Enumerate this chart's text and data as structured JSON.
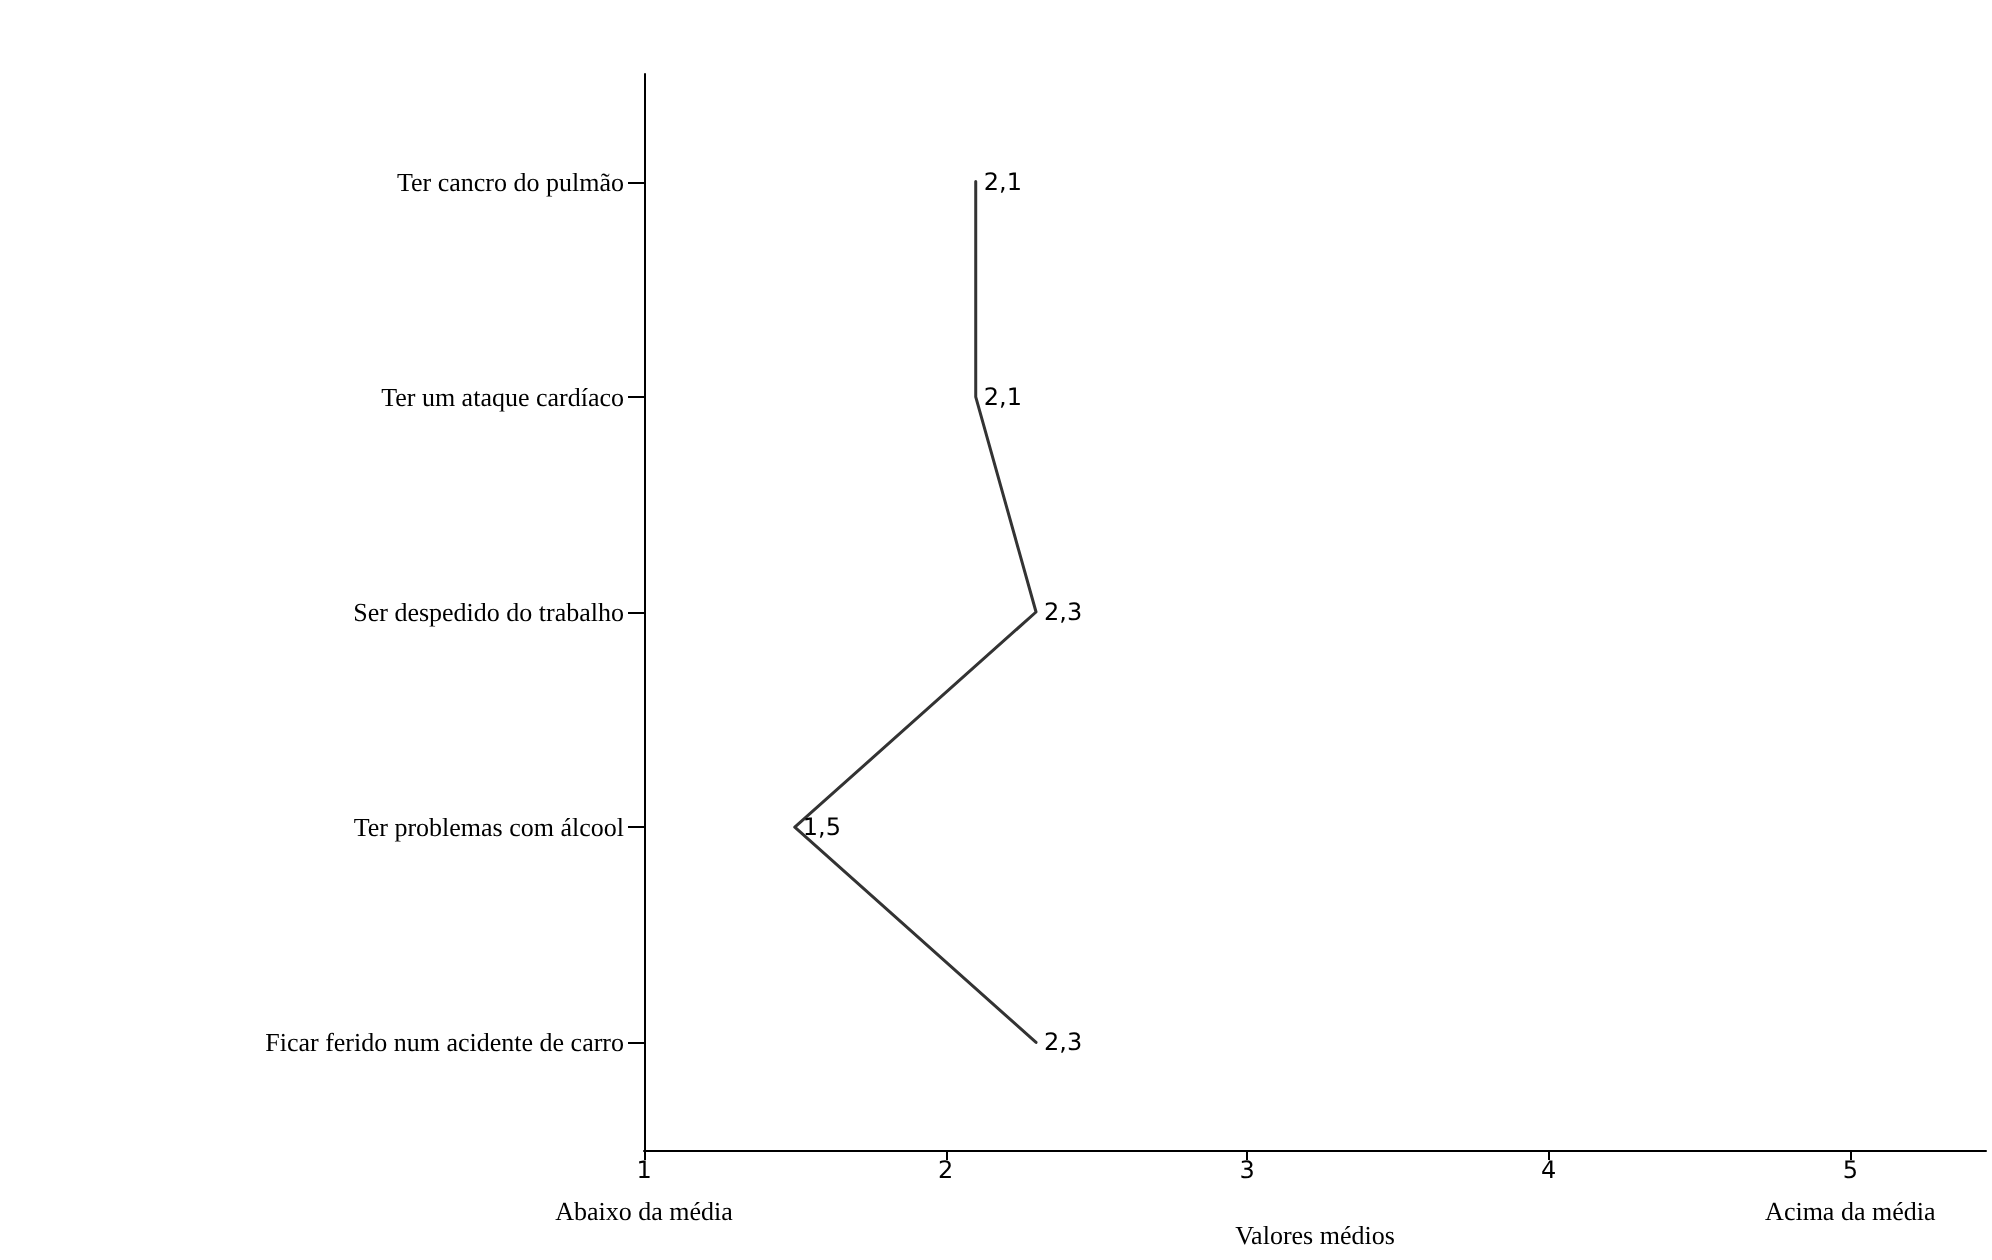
{
  "chart_data": {
    "type": "line",
    "orientation": "horizontal",
    "categories": [
      "Ter cancro do pulmão",
      "Ter um ataque cardíaco",
      "Ser despedido do trabalho",
      "Ter problemas com álcool",
      "Ficar ferido num acidente de carro"
    ],
    "values": [
      2.1,
      2.1,
      2.3,
      1.5,
      2.3
    ],
    "value_labels": [
      "2,1",
      "2,1",
      "2,3",
      "1,5",
      "2,3"
    ],
    "color": "#333333",
    "xlim": [
      1,
      5.45
    ],
    "xticks": [
      1,
      2,
      3,
      4,
      5
    ],
    "xlabel": "Valores médios",
    "annotations": [
      "Abaixo da média",
      "Acima da média"
    ],
    "grid": false,
    "marker": "none",
    "line_style": "solid"
  }
}
